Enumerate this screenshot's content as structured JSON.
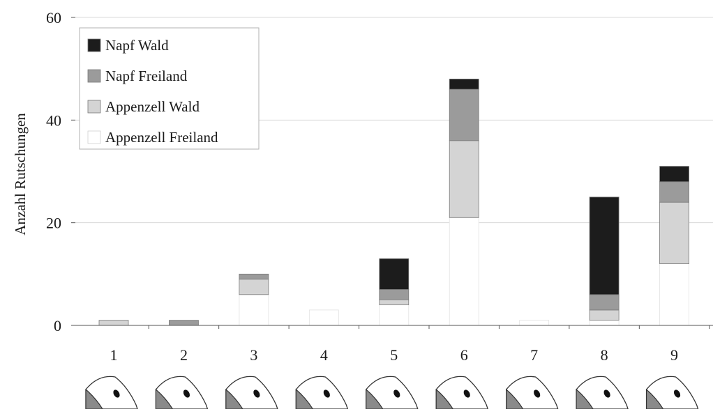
{
  "chart_data": {
    "type": "bar",
    "stacked": true,
    "categories": [
      "1",
      "2",
      "3",
      "4",
      "5",
      "6",
      "7",
      "8",
      "9"
    ],
    "series": [
      {
        "name": "Appenzell Freiland",
        "color": "#ffffff",
        "values": [
          0,
          0,
          6,
          3,
          4,
          21,
          1,
          1,
          12
        ]
      },
      {
        "name": "Appenzell Wald",
        "color": "#d4d4d4",
        "values": [
          1,
          0,
          3,
          0,
          1,
          15,
          0,
          2,
          12
        ]
      },
      {
        "name": "Napf Freiland",
        "color": "#9b9b9b",
        "values": [
          0,
          1,
          1,
          0,
          2,
          10,
          0,
          3,
          4
        ]
      },
      {
        "name": "Napf Wald",
        "color": "#1c1c1c",
        "values": [
          0,
          0,
          0,
          0,
          6,
          2,
          0,
          19,
          3
        ]
      }
    ],
    "legend_order": [
      "Napf Wald",
      "Napf Freiland",
      "Appenzell Wald",
      "Appenzell Freiland"
    ],
    "legend_position": "top-left",
    "ylabel": "Anzahl Rutschungen",
    "xlabel": "",
    "ylim": [
      0,
      60
    ],
    "yticks": [
      "0",
      "20",
      "40",
      "60"
    ],
    "grid": true,
    "category_icons": [
      "slope-shape-icon",
      "slope-shape-icon",
      "slope-shape-icon",
      "slope-shape-icon",
      "slope-shape-icon",
      "slope-shape-icon",
      "slope-shape-icon",
      "slope-shape-icon",
      "slope-shape-icon"
    ]
  }
}
